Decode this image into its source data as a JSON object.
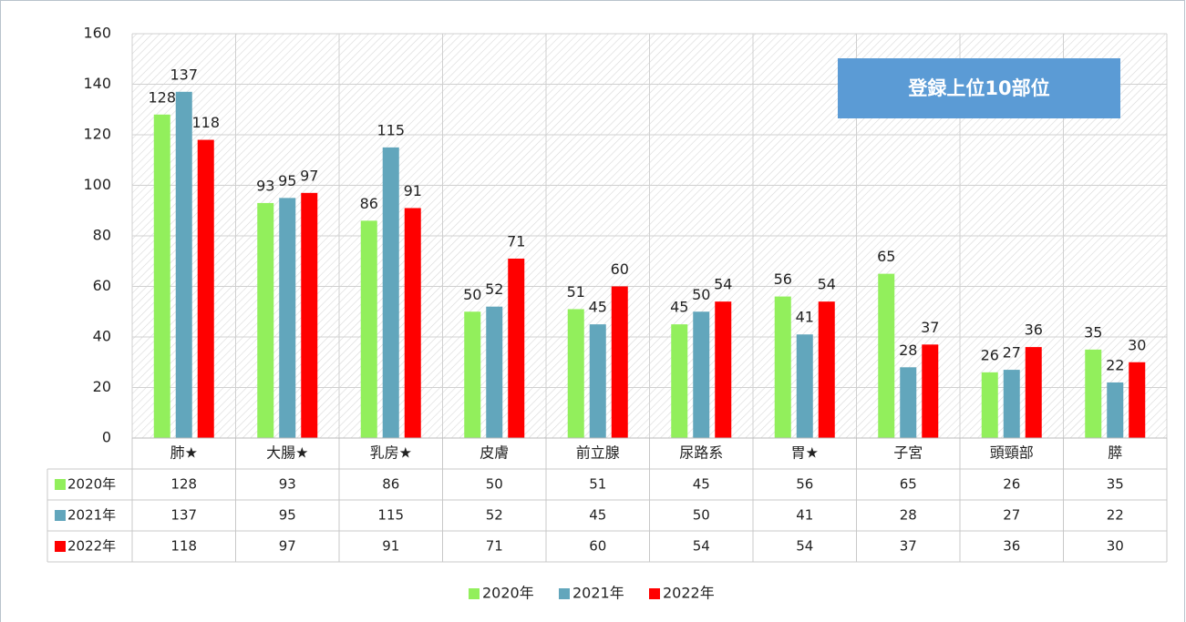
{
  "chart_data": {
    "type": "bar",
    "annotation": "登録上位10部位",
    "categories": [
      "肺★",
      "大腸★",
      "乳房★",
      "皮膚",
      "前立腺",
      "尿路系",
      "胃★",
      "子宮",
      "頭頸部",
      "膵"
    ],
    "series": [
      {
        "name": "2020年",
        "color": "#92ef5c",
        "values": [
          128,
          93,
          86,
          50,
          51,
          45,
          56,
          65,
          26,
          35
        ]
      },
      {
        "name": "2021年",
        "color": "#62a6bc",
        "values": [
          137,
          95,
          115,
          52,
          45,
          50,
          41,
          28,
          27,
          22
        ]
      },
      {
        "name": "2022年",
        "color": "#ff0000",
        "values": [
          118,
          97,
          91,
          71,
          60,
          54,
          54,
          37,
          36,
          30
        ]
      }
    ],
    "ylim": [
      0,
      160
    ],
    "yticks": [
      0,
      20,
      40,
      60,
      80,
      100,
      120,
      140,
      160
    ],
    "grid": true
  }
}
